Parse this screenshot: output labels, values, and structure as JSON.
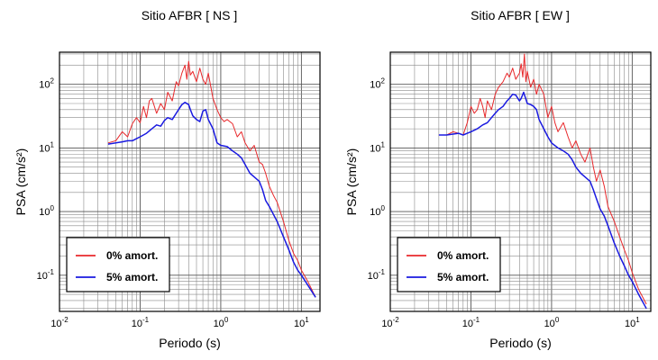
{
  "chart_data": [
    {
      "type": "line",
      "title": "Sitio AFBR [ NS ]",
      "xlabel": "Periodo (s)",
      "ylabel": "PSA (cm/s²)",
      "xscale": "log",
      "yscale": "log",
      "xlim": [
        0.01,
        17
      ],
      "ylim": [
        0.027,
        320
      ],
      "xtick_labels": [
        "10-2",
        "10-1",
        "100",
        "101"
      ],
      "ytick_labels": [
        "10-1",
        "100",
        "101",
        "102"
      ],
      "grid": true,
      "legend_position": "bottom-left",
      "series": [
        {
          "name": "0% amort.",
          "color": "#e8282b",
          "x": [
            0.04,
            0.05,
            0.06,
            0.07,
            0.08,
            0.09,
            0.1,
            0.11,
            0.12,
            0.13,
            0.14,
            0.16,
            0.18,
            0.2,
            0.22,
            0.25,
            0.28,
            0.3,
            0.33,
            0.36,
            0.38,
            0.4,
            0.42,
            0.45,
            0.5,
            0.55,
            0.6,
            0.65,
            0.7,
            0.8,
            0.9,
            1.0,
            1.1,
            1.2,
            1.4,
            1.6,
            1.8,
            2.0,
            2.3,
            2.6,
            3.0,
            3.3,
            3.6,
            4.0,
            4.5,
            5.0,
            6.0,
            7.0,
            8.0,
            9.0,
            10.0,
            12.0,
            15.0
          ],
          "y": [
            12,
            13,
            18,
            15,
            24,
            30,
            25,
            45,
            30,
            55,
            60,
            35,
            50,
            40,
            75,
            55,
            110,
            95,
            150,
            200,
            120,
            230,
            140,
            160,
            110,
            180,
            120,
            100,
            150,
            60,
            40,
            30,
            26,
            28,
            24,
            15,
            18,
            12,
            9,
            11,
            6,
            5.5,
            4,
            2.5,
            1.8,
            1.4,
            0.7,
            0.35,
            0.22,
            0.17,
            0.12,
            0.08,
            0.045
          ]
        },
        {
          "name": "5% amort.",
          "color": "#1a1ae0",
          "x": [
            0.04,
            0.05,
            0.06,
            0.07,
            0.08,
            0.09,
            0.1,
            0.12,
            0.14,
            0.16,
            0.18,
            0.2,
            0.22,
            0.25,
            0.28,
            0.3,
            0.33,
            0.36,
            0.4,
            0.42,
            0.45,
            0.5,
            0.55,
            0.6,
            0.65,
            0.7,
            0.8,
            0.9,
            1.0,
            1.2,
            1.4,
            1.6,
            1.8,
            2.0,
            2.3,
            2.6,
            3.0,
            3.3,
            3.6,
            4.0,
            4.5,
            5.0,
            6.0,
            7.0,
            8.0,
            9.0,
            10.0,
            12.0,
            15.0
          ],
          "y": [
            11.5,
            12,
            12.5,
            13,
            13,
            14,
            15,
            17,
            20,
            23,
            22,
            27,
            30,
            28,
            35,
            40,
            48,
            52,
            48,
            40,
            32,
            28,
            26,
            38,
            40,
            28,
            20,
            12,
            11,
            10.5,
            9,
            8,
            7,
            5.5,
            4,
            3.5,
            3,
            2.2,
            1.5,
            1.2,
            0.9,
            0.7,
            0.4,
            0.25,
            0.16,
            0.12,
            0.1,
            0.07,
            0.045
          ]
        }
      ]
    },
    {
      "type": "line",
      "title": "Sitio AFBR [ EW ]",
      "xlabel": "Periodo (s)",
      "ylabel": "PSA (cm/s²)",
      "xscale": "log",
      "yscale": "log",
      "xlim": [
        0.01,
        17
      ],
      "ylim": [
        0.027,
        320
      ],
      "xtick_labels": [
        "10-2",
        "10-1",
        "100",
        "101"
      ],
      "ytick_labels": [
        "10-1",
        "100",
        "101",
        "102"
      ],
      "grid": true,
      "legend_position": "bottom-left",
      "series": [
        {
          "name": "0% amort.",
          "color": "#e8282b",
          "x": [
            0.04,
            0.05,
            0.06,
            0.07,
            0.08,
            0.09,
            0.1,
            0.11,
            0.12,
            0.13,
            0.14,
            0.15,
            0.16,
            0.18,
            0.2,
            0.22,
            0.25,
            0.28,
            0.3,
            0.33,
            0.36,
            0.4,
            0.42,
            0.44,
            0.46,
            0.48,
            0.5,
            0.55,
            0.6,
            0.65,
            0.7,
            0.8,
            0.9,
            1.0,
            1.1,
            1.2,
            1.4,
            1.6,
            1.8,
            2.0,
            2.3,
            2.6,
            3.0,
            3.3,
            3.6,
            4.0,
            4.5,
            5.0,
            6.0,
            7.0,
            8.0,
            9.0,
            10.0,
            12.0,
            15.0
          ],
          "y": [
            16,
            16,
            18,
            17,
            16,
            25,
            45,
            35,
            40,
            60,
            45,
            30,
            55,
            40,
            70,
            90,
            110,
            150,
            130,
            180,
            120,
            150,
            210,
            130,
            300,
            110,
            160,
            90,
            120,
            70,
            100,
            70,
            30,
            45,
            25,
            18,
            25,
            15,
            10,
            13,
            8,
            6,
            10,
            5,
            3,
            4.5,
            2.5,
            1.2,
            0.7,
            0.4,
            0.25,
            0.17,
            0.11,
            0.06,
            0.035
          ]
        },
        {
          "name": "5% amort.",
          "color": "#1a1ae0",
          "x": [
            0.04,
            0.05,
            0.06,
            0.07,
            0.08,
            0.09,
            0.1,
            0.12,
            0.14,
            0.16,
            0.18,
            0.2,
            0.22,
            0.25,
            0.28,
            0.3,
            0.33,
            0.36,
            0.4,
            0.42,
            0.45,
            0.5,
            0.55,
            0.6,
            0.65,
            0.7,
            0.8,
            0.9,
            1.0,
            1.2,
            1.4,
            1.6,
            1.8,
            2.0,
            2.3,
            2.6,
            3.0,
            3.3,
            3.6,
            4.0,
            4.5,
            5.0,
            6.0,
            7.0,
            8.0,
            9.0,
            10.0,
            12.0,
            15.0
          ],
          "y": [
            16,
            16,
            16.5,
            17,
            16,
            17,
            18,
            20,
            23,
            25,
            30,
            35,
            40,
            45,
            55,
            60,
            70,
            68,
            55,
            60,
            75,
            50,
            48,
            45,
            40,
            28,
            20,
            15,
            12,
            10,
            9,
            8,
            6.5,
            5,
            4,
            3.5,
            3,
            2.2,
            1.6,
            1.1,
            0.85,
            0.6,
            0.32,
            0.2,
            0.14,
            0.1,
            0.08,
            0.05,
            0.03
          ]
        }
      ]
    }
  ]
}
